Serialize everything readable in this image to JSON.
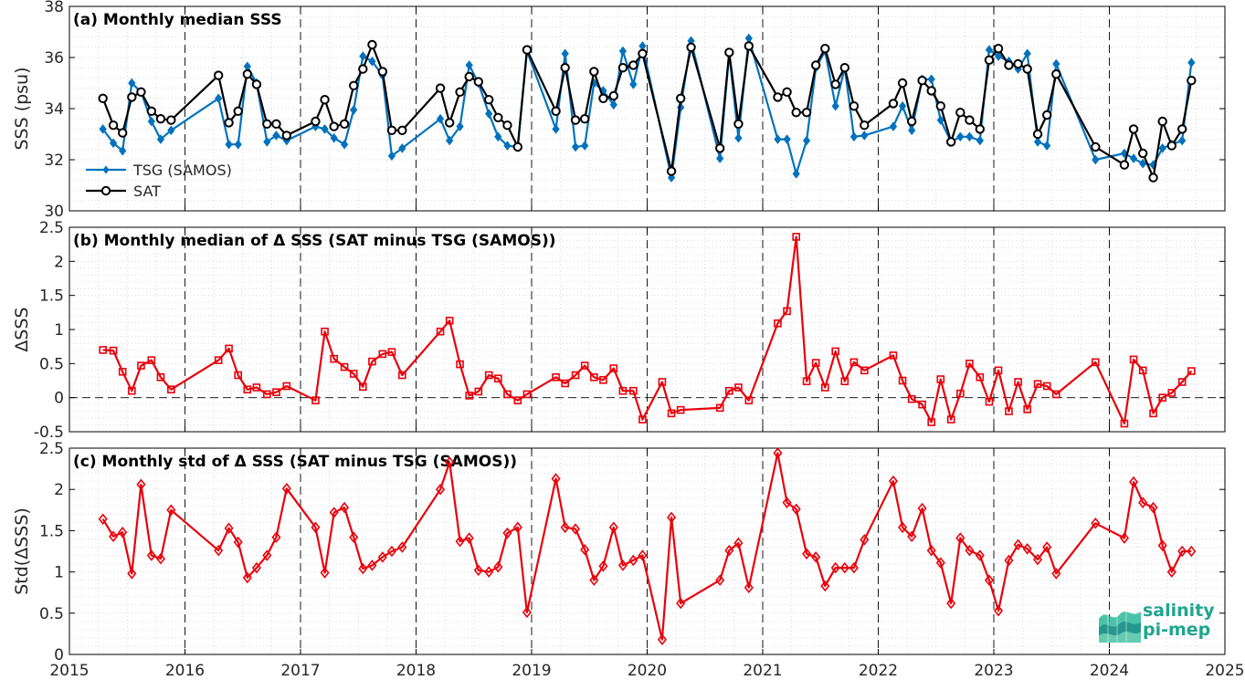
{
  "x_tick_labels": [
    "2015",
    "2016",
    "2017",
    "2018",
    "2019",
    "2020",
    "2021",
    "2022",
    "2023",
    "2024",
    "2025"
  ],
  "colors": {
    "tsg": "#0072BD",
    "sat": "#000000",
    "delta": "#E8000B"
  },
  "logo": {
    "line1": "salinity",
    "line2": "pi-mep"
  },
  "chart_data": [
    {
      "type": "line",
      "title": "(a) Monthly median SSS",
      "ylabel": "SSS (psu)",
      "ylim": [
        30,
        38
      ],
      "yticks": [
        30,
        32,
        34,
        36,
        38
      ],
      "xlim": [
        2015,
        2025
      ],
      "legend": "bottom-left",
      "series": [
        {
          "name": "TSG (SAMOS)",
          "color": "#0072BD",
          "marker": "diamond",
          "x": [
            2015.29,
            2015.38,
            2015.46,
            2015.54,
            2015.62,
            2015.71,
            2015.79,
            2015.88,
            2016.29,
            2016.38,
            2016.46,
            2016.54,
            2016.62,
            2016.71,
            2016.79,
            2016.88,
            2017.13,
            2017.21,
            2017.29,
            2017.38,
            2017.46,
            2017.54,
            2017.62,
            2017.71,
            2017.79,
            2017.88,
            2018.21,
            2018.29,
            2018.38,
            2018.46,
            2018.54,
            2018.63,
            2018.71,
            2018.79,
            2018.88,
            2018.96,
            2019.21,
            2019.29,
            2019.38,
            2019.46,
            2019.54,
            2019.62,
            2019.71,
            2019.79,
            2019.88,
            2019.96,
            2020.21,
            2020.29,
            2020.38,
            2020.63,
            2020.71,
            2020.79,
            2020.88,
            2021.13,
            2021.21,
            2021.29,
            2021.38,
            2021.46,
            2021.54,
            2021.63,
            2021.71,
            2021.79,
            2021.88,
            2022.13,
            2022.21,
            2022.29,
            2022.38,
            2022.46,
            2022.54,
            2022.63,
            2022.71,
            2022.79,
            2022.88,
            2022.96,
            2023.04,
            2023.13,
            2023.21,
            2023.29,
            2023.38,
            2023.46,
            2023.54,
            2023.88,
            2024.13,
            2024.21,
            2024.29,
            2024.38,
            2024.46,
            2024.54,
            2024.63,
            2024.71
          ],
          "y": [
            33.2,
            32.65,
            32.35,
            35.0,
            34.65,
            33.5,
            32.8,
            33.15,
            34.4,
            32.6,
            32.6,
            35.65,
            35.0,
            32.7,
            32.95,
            32.75,
            33.3,
            33.2,
            32.85,
            32.6,
            33.95,
            36.05,
            35.85,
            35.3,
            32.15,
            32.45,
            33.6,
            32.75,
            33.3,
            35.7,
            35.0,
            33.8,
            32.9,
            32.55,
            32.5,
            36.25,
            33.2,
            36.15,
            32.5,
            32.55,
            35.0,
            34.7,
            34.15,
            36.25,
            34.95,
            36.45,
            31.3,
            34.05,
            36.65,
            32.05,
            36.15,
            32.85,
            36.75,
            32.8,
            32.8,
            31.45,
            32.75,
            35.6,
            36.25,
            34.1,
            35.6,
            32.9,
            32.95,
            33.3,
            34.1,
            33.15,
            35.15,
            35.15,
            33.55,
            32.7,
            32.9,
            32.9,
            32.75,
            36.3,
            36.05,
            35.85,
            35.55,
            36.15,
            32.7,
            32.55,
            35.75,
            32.0,
            32.25,
            32.05,
            31.85,
            31.8,
            32.45,
            32.6,
            32.75,
            35.8
          ]
        },
        {
          "name": "SAT",
          "color": "#000000",
          "marker": "circle",
          "x": [
            2015.29,
            2015.38,
            2015.46,
            2015.54,
            2015.62,
            2015.71,
            2015.79,
            2015.88,
            2016.29,
            2016.38,
            2016.46,
            2016.54,
            2016.62,
            2016.71,
            2016.79,
            2016.88,
            2017.13,
            2017.21,
            2017.29,
            2017.38,
            2017.46,
            2017.54,
            2017.62,
            2017.71,
            2017.79,
            2017.88,
            2018.21,
            2018.29,
            2018.38,
            2018.46,
            2018.54,
            2018.63,
            2018.71,
            2018.79,
            2018.88,
            2018.96,
            2019.21,
            2019.29,
            2019.38,
            2019.46,
            2019.54,
            2019.62,
            2019.71,
            2019.79,
            2019.88,
            2019.96,
            2020.21,
            2020.29,
            2020.38,
            2020.63,
            2020.71,
            2020.79,
            2020.88,
            2021.13,
            2021.21,
            2021.29,
            2021.38,
            2021.46,
            2021.54,
            2021.63,
            2021.71,
            2021.79,
            2021.88,
            2022.13,
            2022.21,
            2022.29,
            2022.38,
            2022.46,
            2022.54,
            2022.63,
            2022.71,
            2022.79,
            2022.88,
            2022.96,
            2023.04,
            2023.13,
            2023.21,
            2023.29,
            2023.38,
            2023.46,
            2023.54,
            2023.88,
            2024.13,
            2024.21,
            2024.29,
            2024.38,
            2024.46,
            2024.54,
            2024.63,
            2024.71
          ],
          "y": [
            34.4,
            33.35,
            33.05,
            34.45,
            34.65,
            33.9,
            33.6,
            33.55,
            35.3,
            33.45,
            33.9,
            35.35,
            34.95,
            33.4,
            33.4,
            32.95,
            33.5,
            34.35,
            33.3,
            33.4,
            34.9,
            35.55,
            36.5,
            35.45,
            33.15,
            33.15,
            34.8,
            33.45,
            34.65,
            35.25,
            35.05,
            34.35,
            33.65,
            33.35,
            32.5,
            36.3,
            33.9,
            35.6,
            33.55,
            33.6,
            35.45,
            34.4,
            34.5,
            35.6,
            35.7,
            36.15,
            31.55,
            34.4,
            36.4,
            32.45,
            36.2,
            33.4,
            36.45,
            34.45,
            34.65,
            33.85,
            33.85,
            35.7,
            36.35,
            34.95,
            35.6,
            34.1,
            33.35,
            34.2,
            35.0,
            33.5,
            35.1,
            34.7,
            34.1,
            32.7,
            33.85,
            33.55,
            33.2,
            35.9,
            36.35,
            35.7,
            35.75,
            35.55,
            33.0,
            33.75,
            35.35,
            32.5,
            31.8,
            33.2,
            32.25,
            31.3,
            33.5,
            32.55,
            33.2,
            35.1
          ]
        }
      ]
    },
    {
      "type": "line",
      "title": "(b) Monthly median of Δ SSS (SAT minus TSG (SAMOS))",
      "ylabel": "ΔSSS",
      "ylim": [
        -0.5,
        2.5
      ],
      "yticks": [
        -0.5,
        0,
        0.5,
        1,
        1.5,
        2,
        2.5
      ],
      "xlim": [
        2015,
        2025
      ],
      "series": [
        {
          "name": "",
          "color": "#E8000B",
          "marker": "square",
          "x": [
            2015.29,
            2015.38,
            2015.46,
            2015.54,
            2015.62,
            2015.71,
            2015.79,
            2015.88,
            2016.29,
            2016.38,
            2016.46,
            2016.54,
            2016.62,
            2016.71,
            2016.79,
            2016.88,
            2017.13,
            2017.21,
            2017.29,
            2017.38,
            2017.46,
            2017.54,
            2017.62,
            2017.71,
            2017.79,
            2017.88,
            2018.21,
            2018.29,
            2018.38,
            2018.46,
            2018.54,
            2018.63,
            2018.71,
            2018.79,
            2018.88,
            2018.96,
            2019.21,
            2019.29,
            2019.38,
            2019.46,
            2019.54,
            2019.62,
            2019.71,
            2019.79,
            2019.88,
            2019.96,
            2020.13,
            2020.21,
            2020.29,
            2020.63,
            2020.71,
            2020.79,
            2020.88,
            2021.13,
            2021.21,
            2021.29,
            2021.38,
            2021.46,
            2021.54,
            2021.63,
            2021.71,
            2021.79,
            2021.88,
            2022.13,
            2022.21,
            2022.29,
            2022.38,
            2022.46,
            2022.54,
            2022.63,
            2022.71,
            2022.79,
            2022.88,
            2022.96,
            2023.04,
            2023.13,
            2023.21,
            2023.29,
            2023.38,
            2023.46,
            2023.54,
            2023.88,
            2024.13,
            2024.21,
            2024.29,
            2024.38,
            2024.46,
            2024.54,
            2024.63,
            2024.71
          ],
          "y": [
            0.7,
            0.69,
            0.38,
            0.1,
            0.47,
            0.55,
            0.3,
            0.12,
            0.55,
            0.72,
            0.33,
            0.12,
            0.15,
            0.05,
            0.08,
            0.17,
            -0.04,
            0.97,
            0.57,
            0.45,
            0.35,
            0.16,
            0.53,
            0.64,
            0.67,
            0.33,
            0.97,
            1.13,
            0.49,
            0.03,
            0.09,
            0.33,
            0.28,
            0.05,
            -0.04,
            0.05,
            0.3,
            0.21,
            0.33,
            0.47,
            0.3,
            0.26,
            0.43,
            0.1,
            0.1,
            -0.32,
            0.23,
            -0.23,
            -0.18,
            -0.15,
            0.1,
            0.15,
            -0.04,
            1.09,
            1.27,
            2.36,
            0.24,
            0.51,
            0.15,
            0.68,
            0.24,
            0.52,
            0.4,
            0.62,
            0.25,
            -0.02,
            -0.1,
            -0.36,
            0.27,
            -0.32,
            0.06,
            0.5,
            0.3,
            -0.06,
            0.4,
            -0.2,
            0.23,
            -0.17,
            0.2,
            0.17,
            0.05,
            0.52,
            -0.38,
            0.56,
            0.4,
            -0.23,
            0.0,
            0.07,
            0.23,
            0.39
          ]
        }
      ]
    },
    {
      "type": "line",
      "title": "(c) Monthly std of Δ SSS (SAT minus TSG (SAMOS))",
      "ylabel": "Std(ΔSSS)",
      "ylim": [
        0,
        2.5
      ],
      "yticks": [
        0,
        0.5,
        1,
        1.5,
        2,
        2.5
      ],
      "xlim": [
        2015,
        2025
      ],
      "series": [
        {
          "name": "",
          "color": "#E8000B",
          "marker": "diamond",
          "x": [
            2015.29,
            2015.38,
            2015.46,
            2015.54,
            2015.62,
            2015.71,
            2015.79,
            2015.88,
            2016.29,
            2016.38,
            2016.46,
            2016.54,
            2016.62,
            2016.71,
            2016.79,
            2016.88,
            2017.13,
            2017.21,
            2017.29,
            2017.38,
            2017.46,
            2017.54,
            2017.62,
            2017.71,
            2017.79,
            2017.88,
            2018.21,
            2018.29,
            2018.38,
            2018.46,
            2018.54,
            2018.63,
            2018.71,
            2018.79,
            2018.88,
            2018.96,
            2019.21,
            2019.29,
            2019.38,
            2019.46,
            2019.54,
            2019.62,
            2019.71,
            2019.79,
            2019.88,
            2019.96,
            2020.13,
            2020.21,
            2020.29,
            2020.63,
            2020.71,
            2020.79,
            2020.88,
            2021.13,
            2021.21,
            2021.29,
            2021.38,
            2021.46,
            2021.54,
            2021.63,
            2021.71,
            2021.79,
            2021.88,
            2022.13,
            2022.21,
            2022.29,
            2022.38,
            2022.46,
            2022.54,
            2022.63,
            2022.71,
            2022.79,
            2022.88,
            2022.96,
            2023.04,
            2023.13,
            2023.21,
            2023.29,
            2023.38,
            2023.46,
            2023.54,
            2023.88,
            2024.13,
            2024.21,
            2024.29,
            2024.38,
            2024.46,
            2024.54,
            2024.63,
            2024.71
          ],
          "y": [
            1.64,
            1.43,
            1.48,
            0.98,
            2.06,
            1.2,
            1.16,
            1.75,
            1.26,
            1.53,
            1.36,
            0.93,
            1.05,
            1.2,
            1.42,
            2.01,
            1.54,
            0.99,
            1.72,
            1.78,
            1.42,
            1.04,
            1.08,
            1.18,
            1.25,
            1.3,
            2.0,
            2.33,
            1.37,
            1.41,
            1.02,
            1.0,
            1.06,
            1.47,
            1.54,
            0.51,
            2.13,
            1.54,
            1.52,
            1.27,
            0.9,
            1.07,
            1.54,
            1.08,
            1.14,
            1.2,
            0.18,
            1.66,
            0.62,
            0.9,
            1.26,
            1.35,
            0.81,
            2.44,
            1.84,
            1.76,
            1.22,
            1.18,
            0.83,
            1.05,
            1.05,
            1.05,
            1.39,
            2.1,
            1.54,
            1.43,
            1.77,
            1.26,
            1.11,
            0.62,
            1.41,
            1.26,
            1.2,
            0.9,
            0.53,
            1.14,
            1.33,
            1.28,
            1.15,
            1.3,
            0.98,
            1.59,
            1.41,
            2.09,
            1.84,
            1.78,
            1.32,
            1.0,
            1.25,
            1.25
          ]
        }
      ]
    }
  ]
}
